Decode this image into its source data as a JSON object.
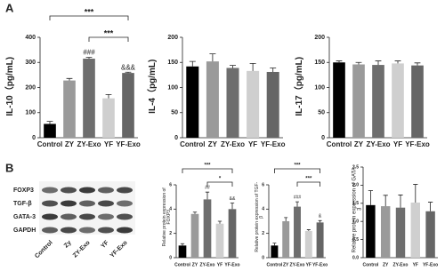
{
  "panels": [
    "A",
    "B"
  ],
  "blot": {
    "rows": [
      "FOXP3",
      "TGF-β",
      "GATA-3",
      "GAPDH"
    ],
    "lanes": [
      "Control",
      "Zy",
      "ZY-Exo",
      "YF",
      "YF-Exo"
    ]
  },
  "chart_data": [
    {
      "type": "bar",
      "y_label": "IL-10（pg/mL)",
      "categories": [
        "Control",
        "ZY",
        "ZY-Exo",
        "YF",
        "YF-Exo"
      ],
      "values": [
        55,
        228,
        315,
        157,
        258
      ],
      "errors": [
        10,
        8,
        5,
        15,
        3
      ],
      "colors": [
        "#000000",
        "#9a9a9a",
        "#6e6e6e",
        "#cfcfcf",
        "#666666"
      ],
      "ylim": [
        0,
        400
      ],
      "yticks": [
        0,
        100,
        200,
        300,
        400
      ],
      "bar_labels": [
        null,
        null,
        "###",
        null,
        "&&&"
      ],
      "brackets": [
        "***",
        "***"
      ]
    },
    {
      "type": "bar",
      "y_label": "IL-4（pg/mL)",
      "categories": [
        "Control",
        "ZY",
        "ZY-Exo",
        "YF",
        "YF-Exo"
      ],
      "values": [
        142,
        152,
        139,
        133,
        131
      ],
      "errors": [
        10,
        15,
        5,
        15,
        8
      ],
      "colors": [
        "#000000",
        "#9a9a9a",
        "#6e6e6e",
        "#cfcfcf",
        "#666666"
      ],
      "ylim": [
        0,
        200
      ],
      "yticks": [
        0,
        50,
        100,
        150,
        200
      ],
      "bar_labels": [
        null,
        null,
        null,
        null,
        null
      ],
      "brackets": []
    },
    {
      "type": "bar",
      "y_label": "IL-17（pg/mL)",
      "categories": [
        "Control",
        "ZY",
        "ZY-Exo",
        "YF",
        "YF-Exo"
      ],
      "values": [
        150,
        146,
        145,
        148,
        144
      ],
      "errors": [
        3,
        4,
        8,
        5,
        5
      ],
      "colors": [
        "#000000",
        "#9a9a9a",
        "#6e6e6e",
        "#cfcfcf",
        "#666666"
      ],
      "ylim": [
        0,
        200
      ],
      "yticks": [
        0,
        50,
        100,
        150,
        200
      ],
      "bar_labels": [
        null,
        null,
        null,
        null,
        null
      ],
      "brackets": []
    },
    {
      "type": "bar",
      "y_label": "Relative protein expression of FOXP3",
      "categories": [
        "Control",
        "ZY",
        "ZY-Exo",
        "YF",
        "YF-Exo"
      ],
      "values": [
        1.0,
        3.6,
        4.8,
        2.8,
        4.0
      ],
      "errors": [
        0.15,
        0.15,
        0.6,
        0.2,
        0.5
      ],
      "colors": [
        "#000000",
        "#9a9a9a",
        "#6e6e6e",
        "#cfcfcf",
        "#666666"
      ],
      "ylim": [
        0,
        6
      ],
      "yticks": [
        0,
        2,
        4,
        6
      ],
      "bar_labels": [
        null,
        null,
        "##",
        null,
        "&&"
      ],
      "brackets": [
        "***",
        "*"
      ]
    },
    {
      "type": "bar",
      "y_label": "Relative protein expression of TGF-β",
      "categories": [
        "Control",
        "ZY",
        "ZY-Exo",
        "YF",
        "YF-Exo"
      ],
      "values": [
        1.0,
        3.0,
        4.2,
        2.2,
        2.9
      ],
      "errors": [
        0.2,
        0.3,
        0.4,
        0.1,
        0.15
      ],
      "colors": [
        "#000000",
        "#9a9a9a",
        "#6e6e6e",
        "#cfcfcf",
        "#666666"
      ],
      "ylim": [
        0,
        6
      ],
      "yticks": [
        0,
        2,
        4,
        6
      ],
      "bar_labels": [
        null,
        null,
        "###",
        null,
        "&"
      ],
      "brackets": [
        "***",
        "***"
      ]
    },
    {
      "type": "bar",
      "y_label": "Relative protein expression of GATA-3",
      "categories": [
        "Control",
        "ZY",
        "ZY-Exo",
        "YF",
        "YF-Exo"
      ],
      "values": [
        1.45,
        1.42,
        1.38,
        1.52,
        1.28
      ],
      "errors": [
        0.4,
        0.3,
        0.35,
        0.5,
        0.25
      ],
      "colors": [
        "#000000",
        "#9a9a9a",
        "#6e6e6e",
        "#cfcfcf",
        "#666666"
      ],
      "ylim": [
        0,
        2.5
      ],
      "yticks": [
        {
          "value": 0,
          "label": "0.0"
        },
        0.5,
        {
          "value": 1,
          "label": "1.0"
        },
        1.5,
        {
          "value": 2,
          "label": "2.0"
        },
        2.5
      ],
      "bar_labels": [
        null,
        null,
        null,
        null,
        null
      ],
      "brackets": []
    }
  ]
}
